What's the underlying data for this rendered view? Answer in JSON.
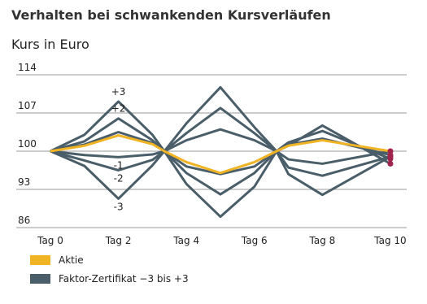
{
  "chart_data": {
    "type": "line",
    "title": "Verhalten bei schwankenden Kursverläufen",
    "subtitle": "Kurs in Euro",
    "x": [
      0,
      1,
      2,
      3,
      3.35,
      4,
      5,
      6,
      6.65,
      7,
      8,
      10
    ],
    "xlim": [
      0,
      10
    ],
    "xticks": [
      {
        "value": 0,
        "label": "Tag 0"
      },
      {
        "value": 2,
        "label": "Tag 2"
      },
      {
        "value": 4,
        "label": "Tag 4"
      },
      {
        "value": 6,
        "label": "Tag 6"
      },
      {
        "value": 8,
        "label": "Tag 8"
      },
      {
        "value": 10,
        "label": "Tag 10"
      }
    ],
    "ylim": [
      86,
      114
    ],
    "yticks": [
      86,
      93,
      100,
      107,
      114
    ],
    "grid": true,
    "end_marker_color": "#a0234b",
    "series": [
      {
        "name": "Aktie",
        "color": "#f0b323",
        "values": [
          100,
          101,
          102.9,
          101.3,
          100,
          98,
          96,
          98,
          100,
          101,
          102,
          100
        ]
      },
      {
        "name": "Faktor-Zertifikat −3 bis +3",
        "color": "#4a5e6a",
        "lines": [
          {
            "label": "+3",
            "values": [
              100,
              103,
              109.1,
              103,
              100,
              105.1,
              111.7,
              104.4,
              100,
              101,
              104.7,
              97.7
            ]
          },
          {
            "label": "+2",
            "values": [
              100,
              101.8,
              106,
              102,
              100,
              103.3,
              107.9,
              103.3,
              100,
              101.6,
              103.7,
              98.6
            ]
          },
          {
            "values": [
              100,
              101.2,
              103.5,
              101.5,
              100,
              102,
              104,
              102,
              100,
              101.2,
              102.3,
              99.3
            ]
          },
          {
            "label": "-1",
            "values": [
              100,
              99.3,
              98.9,
              99.4,
              100,
              97.2,
              95.8,
              97.2,
              100,
              98.5,
              97.7,
              100
            ]
          },
          {
            "label": "-2",
            "values": [
              100,
              98.3,
              96.5,
              98.4,
              100,
              96,
              92.1,
              96,
              100,
              97,
              95.5,
              99
            ]
          },
          {
            "label": "-3",
            "values": [
              100,
              97.3,
              91.3,
              97.4,
              100,
              94,
              88,
              93.5,
              100,
              95.8,
              92,
              99
            ]
          }
        ]
      }
    ]
  }
}
